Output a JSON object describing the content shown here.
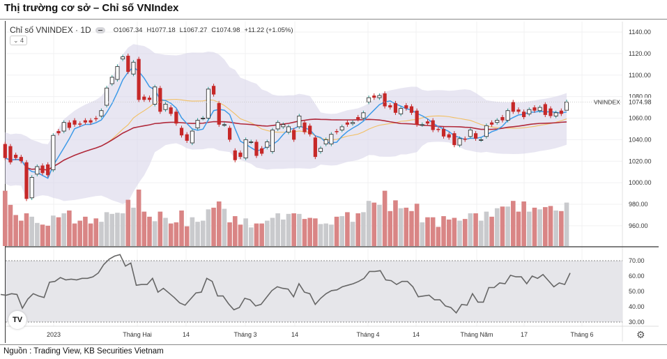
{
  "page": {
    "title": "Thị trường cơ sở – Chỉ số VNIndex",
    "source": "Nguồn : Trading View, KB Securities Vietnam"
  },
  "legend": {
    "symbol": "Chỉ số VNINDEX · 1D",
    "open": "O1067.34",
    "high": "H1077.18",
    "low": "L1067.27",
    "close": "C1074.98",
    "change": "+11.22 (+1.05%)",
    "indicators_collapsed": "⌄ 4"
  },
  "chart_data": [
    {
      "type": "candlestick",
      "symbol_label": "VNINDEX",
      "last_price_label": "1074.98",
      "ylim": [
        945,
        1150
      ],
      "yticks": [
        "1140.00",
        "1120.00",
        "1100.00",
        "1080.00",
        "1060.00",
        "1040.00",
        "1020.00",
        "1000.00",
        "980.00",
        "960.00"
      ],
      "xticks": [
        "2023",
        "Tháng Hai",
        "14",
        "Tháng 3",
        "14",
        "Tháng 4",
        "14",
        "Tháng Năm",
        "17",
        "Tháng 6"
      ],
      "grid": true,
      "last_ohlc": {
        "open": 1067.34,
        "high": 1077.18,
        "low": 1067.27,
        "close": 1074.98
      },
      "candles_open_close": [
        [
          1036,
          1023
        ],
        [
          1034,
          1019
        ],
        [
          1026,
          1023
        ],
        [
          1024,
          1020
        ],
        [
          1019,
          985
        ],
        [
          986,
          1005
        ],
        [
          1008,
          1015
        ],
        [
          1016,
          1009
        ],
        [
          1017,
          1007
        ],
        [
          1012,
          1044
        ],
        [
          1048,
          1046
        ],
        [
          1048,
          1056
        ],
        [
          1056,
          1051
        ],
        [
          1058,
          1054
        ],
        [
          1055,
          1054
        ],
        [
          1058,
          1056
        ],
        [
          1058,
          1056
        ],
        [
          1060,
          1059
        ],
        [
          1062,
          1067
        ],
        [
          1072,
          1088
        ],
        [
          1092,
          1098
        ],
        [
          1096,
          1108
        ],
        [
          1115,
          1117
        ],
        [
          1118,
          1103
        ],
        [
          1101,
          1112
        ],
        [
          1115,
          1077
        ],
        [
          1080,
          1077
        ],
        [
          1079,
          1077
        ],
        [
          1073,
          1089
        ],
        [
          1088,
          1066
        ],
        [
          1068,
          1073
        ],
        [
          1070,
          1064
        ],
        [
          1066,
          1055
        ],
        [
          1051,
          1044
        ],
        [
          1045,
          1039
        ],
        [
          1037,
          1048
        ],
        [
          1051,
          1058
        ],
        [
          1060,
          1060
        ],
        [
          1060,
          1087
        ],
        [
          1090,
          1082
        ],
        [
          1074,
          1054
        ],
        [
          1054,
          1054
        ],
        [
          1051,
          1040
        ],
        [
          1030,
          1021
        ],
        [
          1028,
          1024
        ],
        [
          1023,
          1040
        ],
        [
          1038,
          1038
        ],
        [
          1038,
          1025
        ],
        [
          1032,
          1027
        ],
        [
          1033,
          1038
        ],
        [
          1029,
          1049
        ],
        [
          1050,
          1056
        ],
        [
          1052,
          1054
        ],
        [
          1047,
          1052
        ],
        [
          1049,
          1040
        ],
        [
          1052,
          1062
        ],
        [
          1056,
          1047
        ],
        [
          1053,
          1045
        ],
        [
          1042,
          1024
        ],
        [
          1029,
          1032
        ],
        [
          1036,
          1040
        ],
        [
          1036,
          1045
        ],
        [
          1048,
          1047
        ],
        [
          1049,
          1052
        ],
        [
          1056,
          1054
        ],
        [
          1055,
          1056
        ],
        [
          1061,
          1059
        ],
        [
          1060,
          1065
        ],
        [
          1075,
          1079
        ],
        [
          1081,
          1079
        ],
        [
          1079,
          1081
        ],
        [
          1083,
          1071
        ],
        [
          1072,
          1070
        ],
        [
          1074,
          1065
        ],
        [
          1064,
          1069
        ],
        [
          1072,
          1069
        ],
        [
          1071,
          1065
        ],
        [
          1067,
          1054
        ],
        [
          1054,
          1054
        ],
        [
          1057,
          1055
        ],
        [
          1058,
          1049
        ],
        [
          1050,
          1049
        ],
        [
          1050,
          1043
        ],
        [
          1045,
          1042
        ],
        [
          1046,
          1035
        ],
        [
          1035,
          1041
        ],
        [
          1041,
          1040
        ],
        [
          1043,
          1049
        ],
        [
          1046,
          1041
        ],
        [
          1040,
          1040
        ],
        [
          1043,
          1053
        ],
        [
          1056,
          1054
        ],
        [
          1056,
          1058
        ],
        [
          1061,
          1058
        ],
        [
          1058,
          1067
        ],
        [
          1075,
          1066
        ],
        [
          1068,
          1066
        ],
        [
          1066,
          1061
        ],
        [
          1064,
          1068
        ],
        [
          1070,
          1067
        ],
        [
          1067,
          1070
        ],
        [
          1073,
          1063
        ],
        [
          1069,
          1062
        ],
        [
          1062,
          1065
        ],
        [
          1067,
          1064
        ],
        [
          1067.34,
          1074.98
        ]
      ],
      "relative_volume_pct": [
        98,
        73,
        55,
        45,
        58,
        52,
        41,
        38,
        36,
        54,
        51,
        58,
        63,
        40,
        45,
        52,
        40,
        49,
        43,
        60,
        57,
        59,
        58,
        82,
        68,
        100,
        61,
        52,
        44,
        61,
        50,
        40,
        42,
        63,
        35,
        51,
        43,
        45,
        65,
        68,
        79,
        66,
        42,
        53,
        38,
        49,
        33,
        40,
        40,
        45,
        50,
        58,
        47,
        57,
        58,
        57,
        48,
        50,
        49,
        39,
        40,
        38,
        52,
        53,
        60,
        43,
        58,
        60,
        80,
        77,
        73,
        98,
        62,
        81,
        67,
        68,
        62,
        75,
        42,
        51,
        51,
        34,
        53,
        47,
        50,
        45,
        48,
        58,
        58,
        45,
        61,
        52,
        67,
        70,
        70,
        80,
        61,
        79,
        61,
        68,
        65,
        69,
        71,
        63,
        62,
        77
      ],
      "overlays": [
        "moving-average-short",
        "moving-average-20",
        "moving-average-long",
        "bollinger-bands"
      ],
      "colors": {
        "down": "#c62828",
        "up_body": "#ffffff",
        "up_wick": "#2a9d8f",
        "ma_short": "#3d9ae8",
        "ma_20": "#f2bf62",
        "ma_long": "#b0283a",
        "band": "#d9d6ea",
        "vol_down": "#d98585",
        "vol_up": "#c9cacd"
      }
    },
    {
      "type": "line",
      "ylim": [
        25,
        77
      ],
      "yticks": [
        "70.00",
        "60.00",
        "50.00",
        "40.00",
        "30.00"
      ],
      "bands": [
        30,
        70
      ],
      "values": [
        48,
        47.5,
        48.5,
        48,
        39,
        45,
        48.5,
        47,
        46,
        56,
        56.5,
        59,
        57.5,
        58,
        57.5,
        58.5,
        58.5,
        59.5,
        62,
        67.5,
        71,
        73,
        74,
        66.5,
        68.5,
        54,
        54.5,
        54.5,
        58.5,
        49.5,
        52,
        49,
        46,
        42.5,
        41,
        45,
        49,
        49.5,
        58.5,
        56.5,
        47,
        47,
        42,
        38,
        39.5,
        45.5,
        44.5,
        40.5,
        41.5,
        46,
        50.5,
        53,
        52,
        51.5,
        46.5,
        55,
        49.5,
        48.5,
        41.5,
        45.5,
        48.5,
        50.5,
        51,
        53,
        54,
        55,
        56.5,
        58.5,
        63,
        63,
        63.5,
        57.5,
        57,
        54.5,
        56.5,
        56.5,
        53,
        46.5,
        47,
        47.5,
        44.5,
        44.5,
        40.5,
        39.5,
        36,
        41.5,
        41,
        48.5,
        43,
        43,
        52.5,
        52.5,
        55.5,
        55,
        60.5,
        59.5,
        59.5,
        55,
        60,
        58.5,
        61,
        57,
        53,
        55.5,
        54.5,
        62
      ],
      "color": "#666666"
    }
  ]
}
